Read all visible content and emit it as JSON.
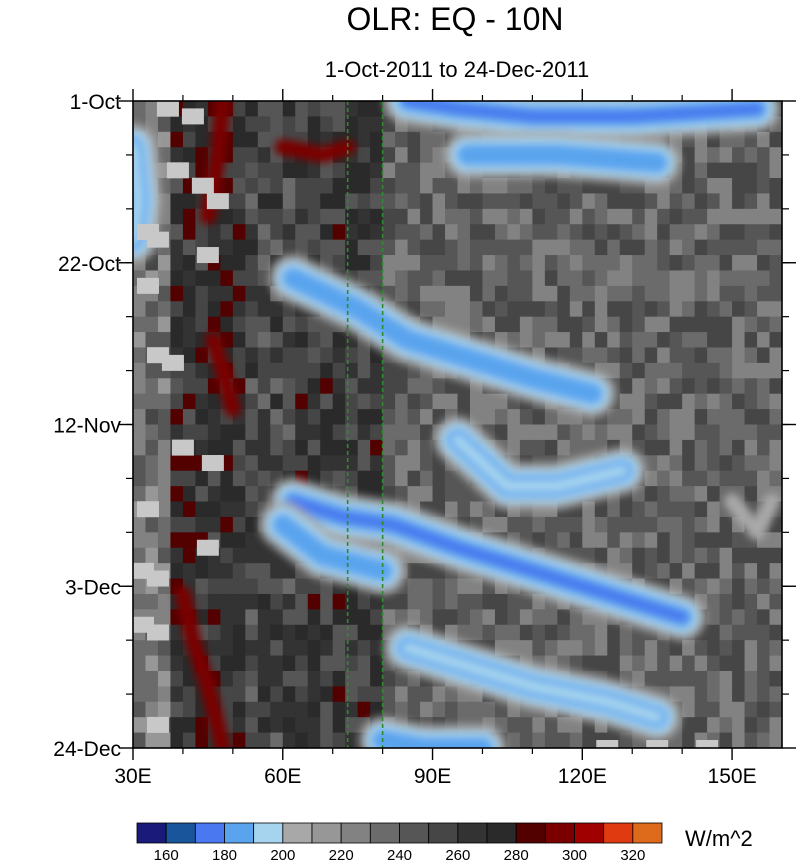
{
  "chart_data": {
    "type": "heatmap",
    "title": "OLR: EQ - 10N",
    "subtitle": "1-Oct-2011 to 24-Dec-2011",
    "xlabel": "",
    "ylabel": "",
    "x_ticks": [
      "30E",
      "60E",
      "90E",
      "120E",
      "150E"
    ],
    "x_tick_values": [
      30,
      60,
      90,
      120,
      150
    ],
    "xlim": [
      30,
      160
    ],
    "y_ticks": [
      "1-Oct",
      "22-Oct",
      "12-Nov",
      "3-Dec",
      "24-Dec"
    ],
    "y_tick_values": [
      "2011-10-01",
      "2011-10-22",
      "2011-11-12",
      "2011-12-03",
      "2011-12-24"
    ],
    "ylim": [
      "2011-10-01",
      "2011-12-24"
    ],
    "reference_lines": [
      {
        "axis": "x",
        "value": 73,
        "color": "#2e8b2e",
        "style": "dashed"
      },
      {
        "axis": "x",
        "value": 80,
        "color": "#2e8b2e",
        "style": "dashed"
      }
    ],
    "colorbar": {
      "unit": "W/m^2",
      "levels": [
        160,
        170,
        180,
        190,
        200,
        210,
        220,
        230,
        240,
        250,
        260,
        270,
        280,
        290,
        300,
        310,
        320
      ],
      "labels": [
        "160",
        "180",
        "200",
        "220",
        "240",
        "260",
        "280",
        "300",
        "320"
      ],
      "colors": [
        "#1a1a7a",
        "#18559a",
        "#4a78f0",
        "#5aa4ee",
        "#a6d4ee",
        "#a8a8a8",
        "#979797",
        "#828282",
        "#6b6b6b",
        "#565656",
        "#464646",
        "#333333",
        "#2a2a2a",
        "#520000",
        "#7a0000",
        "#a00000",
        "#e03a10",
        "#de6a1c"
      ]
    },
    "features": [
      {
        "name": "low-OLR band",
        "value": 175,
        "path": [
          [
            85,
            "2011-10-01"
          ],
          [
            95,
            "2011-10-02"
          ],
          [
            110,
            "2011-10-03"
          ],
          [
            130,
            "2011-10-03"
          ],
          [
            155,
            "2011-10-02"
          ]
        ]
      },
      {
        "name": "low-OLR band",
        "value": 180,
        "path": [
          [
            97,
            "2011-10-08"
          ],
          [
            115,
            "2011-10-08"
          ],
          [
            135,
            "2011-10-09"
          ]
        ]
      },
      {
        "name": "low-OLR band",
        "value": 185,
        "path": [
          [
            62,
            "2011-10-24"
          ],
          [
            75,
            "2011-10-28"
          ],
          [
            85,
            "2011-11-01"
          ],
          [
            100,
            "2011-11-04"
          ],
          [
            110,
            "2011-11-06"
          ],
          [
            122,
            "2011-11-08"
          ]
        ]
      },
      {
        "name": "low-OLR band",
        "value": 170,
        "path": [
          [
            62,
            "2011-11-22"
          ],
          [
            72,
            "2011-11-24"
          ],
          [
            82,
            "2011-11-25"
          ],
          [
            95,
            "2011-11-28"
          ],
          [
            110,
            "2011-12-01"
          ],
          [
            125,
            "2011-12-04"
          ],
          [
            140,
            "2011-12-07"
          ]
        ]
      },
      {
        "name": "low-OLR band",
        "value": 190,
        "path": [
          [
            85,
            "2011-12-11"
          ],
          [
            100,
            "2011-12-14"
          ],
          [
            110,
            "2011-12-16"
          ],
          [
            125,
            "2011-12-18"
          ],
          [
            135,
            "2011-12-20"
          ]
        ]
      },
      {
        "name": "low-OLR band",
        "value": 180,
        "path": [
          [
            80,
            "2011-12-23"
          ],
          [
            88,
            "2011-12-24"
          ],
          [
            100,
            "2011-12-24"
          ]
        ]
      },
      {
        "name": "low-OLR band",
        "value": 185,
        "path": [
          [
            60,
            "2011-11-25"
          ],
          [
            68,
            "2011-11-29"
          ],
          [
            80,
            "2011-12-01"
          ]
        ]
      },
      {
        "name": "low-OLR band",
        "value": 195,
        "path": [
          [
            95,
            "2011-11-14"
          ],
          [
            105,
            "2011-11-20"
          ],
          [
            115,
            "2011-11-20"
          ],
          [
            128,
            "2011-11-18"
          ]
        ]
      },
      {
        "name": "high-OLR band",
        "value": 295,
        "path": [
          [
            48,
            "2011-10-01"
          ],
          [
            47,
            "2011-10-08"
          ],
          [
            45,
            "2011-10-16"
          ]
        ]
      },
      {
        "name": "high-OLR band",
        "value": 290,
        "path": [
          [
            60,
            "2011-10-07"
          ],
          [
            68,
            "2011-10-08"
          ],
          [
            73,
            "2011-10-07"
          ]
        ]
      },
      {
        "name": "high-OLR band",
        "value": 290,
        "path": [
          [
            46,
            "2011-11-01"
          ],
          [
            48,
            "2011-11-05"
          ],
          [
            50,
            "2011-11-10"
          ]
        ]
      },
      {
        "name": "high-OLR band",
        "value": 295,
        "path": [
          [
            40,
            "2011-12-04"
          ],
          [
            42,
            "2011-12-10"
          ],
          [
            45,
            "2011-12-16"
          ],
          [
            48,
            "2011-12-24"
          ]
        ]
      },
      {
        "name": "low-OLR band",
        "value": 195,
        "path": [
          [
            30,
            "2011-10-07"
          ],
          [
            31,
            "2011-10-14"
          ],
          [
            30,
            "2011-10-19"
          ]
        ]
      },
      {
        "name": "low-OLR band",
        "value": 200,
        "path": [
          [
            150,
            "2011-11-22"
          ],
          [
            155,
            "2011-11-26"
          ],
          [
            158,
            "2011-11-22"
          ]
        ]
      }
    ],
    "missing_cells": [
      [
        37,
        "2011-10-02"
      ],
      [
        42,
        "2011-10-03"
      ],
      [
        39,
        "2011-10-10"
      ],
      [
        44,
        "2011-10-12"
      ],
      [
        47,
        "2011-10-14"
      ],
      [
        33,
        "2011-10-18"
      ],
      [
        35,
        "2011-10-19"
      ],
      [
        45,
        "2011-10-21"
      ],
      [
        33,
        "2011-10-25"
      ],
      [
        35,
        "2011-11-03"
      ],
      [
        38,
        "2011-11-04"
      ],
      [
        40,
        "2011-11-15"
      ],
      [
        46,
        "2011-11-17"
      ],
      [
        33,
        "2011-11-23"
      ],
      [
        45,
        "2011-11-28"
      ],
      [
        32,
        "2011-12-01"
      ],
      [
        35,
        "2011-12-02"
      ],
      [
        32,
        "2011-12-08"
      ],
      [
        35,
        "2011-12-09"
      ],
      [
        35,
        "2011-12-21"
      ],
      [
        125,
        "2011-12-24"
      ],
      [
        135,
        "2011-12-24"
      ],
      [
        145,
        "2011-12-24"
      ]
    ]
  }
}
